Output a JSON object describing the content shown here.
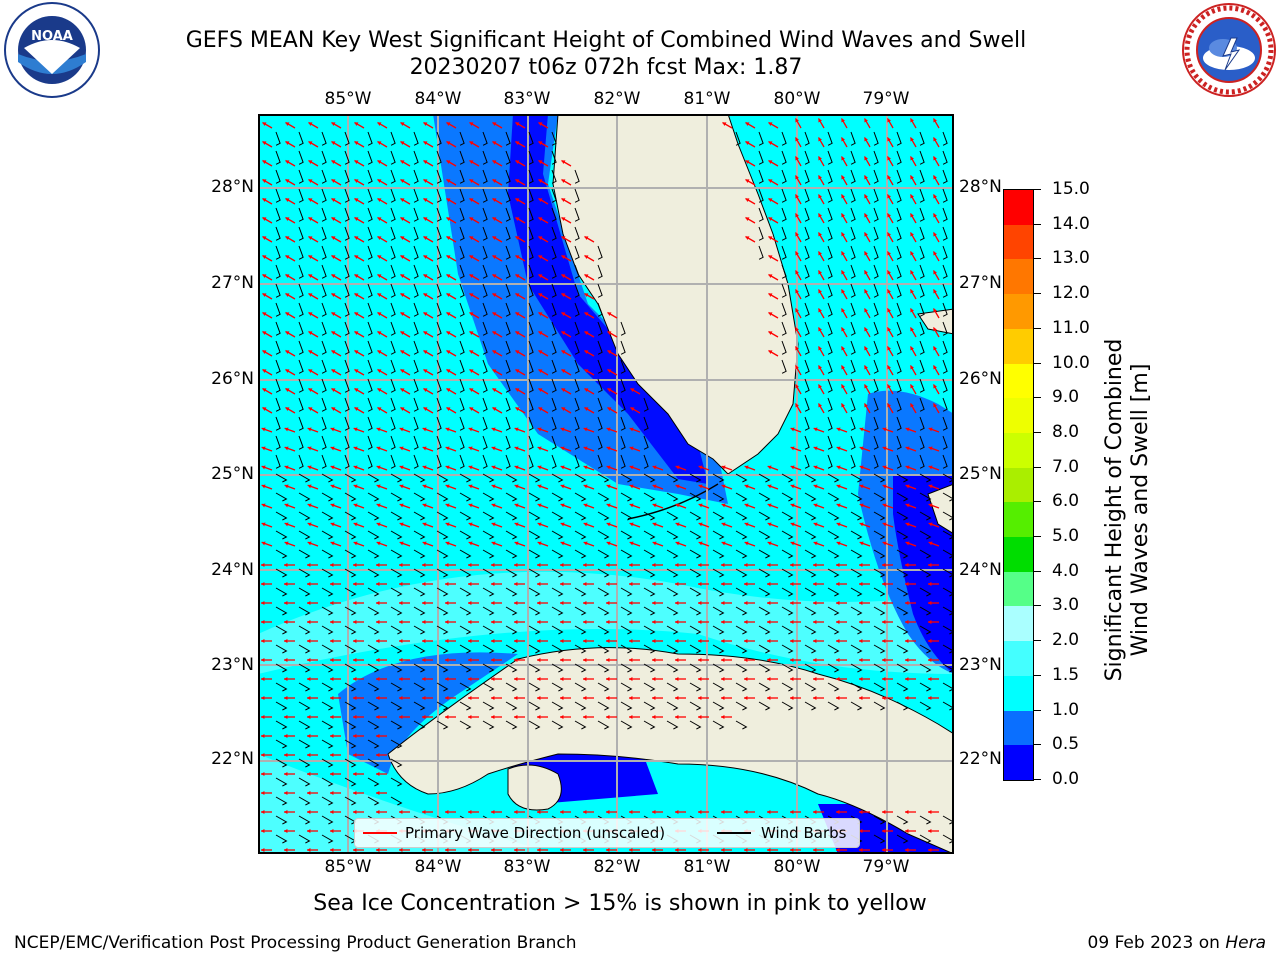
{
  "title_line1": "GEFS MEAN Key West Significant Height of Combined Wind Waves and Swell",
  "title_line2": "20230207 t06z 072h fcst   Max: 1.87",
  "longitude_labels": [
    "85°W",
    "84°W",
    "83°W",
    "82°W",
    "81°W",
    "80°W",
    "79°W"
  ],
  "latitude_labels": [
    "28°N",
    "27°N",
    "26°N",
    "25°N",
    "24°N",
    "23°N",
    "22°N"
  ],
  "colorbar": {
    "title_line1": "Significant Height of Combined",
    "title_line2": "Wind Waves and Swell [m]",
    "tick_labels": [
      "0.0",
      "0.5",
      "1.0",
      "1.5",
      "2.0",
      "3.0",
      "4.0",
      "5.0",
      "6.0",
      "7.0",
      "8.0",
      "9.0",
      "10.0",
      "11.0",
      "12.0",
      "13.0",
      "14.0",
      "15.0"
    ],
    "colors": [
      "#0000ff",
      "#0a6fff",
      "#00ffff",
      "#44ffff",
      "#aaffff",
      "#55ff88",
      "#00dd00",
      "#55ee00",
      "#aaee00",
      "#ccff00",
      "#eeff00",
      "#ffff00",
      "#ffcc00",
      "#ff9900",
      "#ff7700",
      "#ff4400",
      "#ff0000"
    ]
  },
  "legend": {
    "wave_direction": "Primary Wave Direction (unscaled)",
    "wind_barbs": "Wind Barbs",
    "wave_color": "#ff0000",
    "barb_color": "#000000"
  },
  "footer_note": "Sea Ice Concentration > 15% is shown in pink to yellow",
  "credit_left": "NCEP/EMC/Verification Post Processing Product Generation Branch",
  "credit_right_date": "09 Feb 2023 on ",
  "credit_right_machine": "Hera",
  "colors": {
    "land": "#efeedd",
    "ocean_cyan": "#00ffff",
    "ocean_light": "#55ffff",
    "ocean_mid": "#0a78ff",
    "ocean_deep": "#0000ff",
    "grid": "#b0b0b0"
  },
  "logos": {
    "left": "noaa-logo",
    "right": "nws-logo",
    "left_text": "NOAA",
    "right_text": "NATIONAL WEATHER SERVICE"
  }
}
